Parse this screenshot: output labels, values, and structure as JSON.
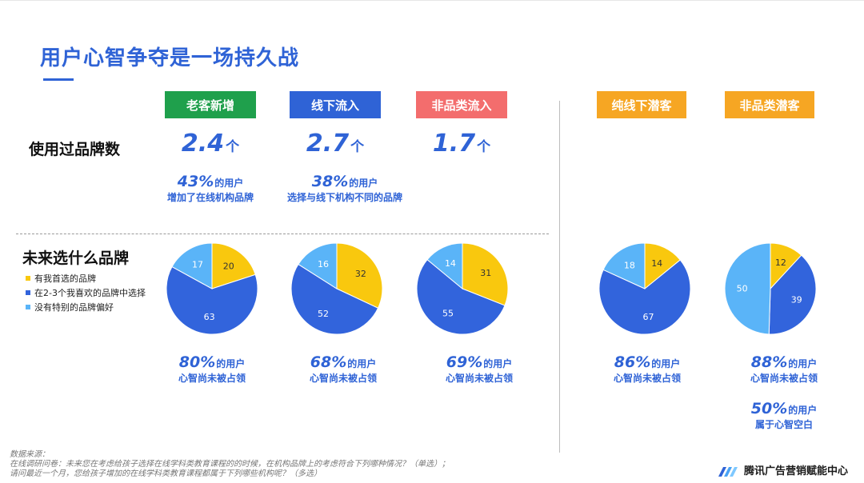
{
  "title": "用户心智争夺是一场持久战",
  "segments": [
    {
      "label": "老客新增",
      "color": "#1fa04c"
    },
    {
      "label": "线下流入",
      "color": "#2f63d6"
    },
    {
      "label": "非品类流入",
      "color": "#f36d6d"
    },
    {
      "label": "纯线下潜客",
      "color": "#f6a623"
    },
    {
      "label": "非品类潜客",
      "color": "#f6a623"
    }
  ],
  "row1_label": "使用过品牌数",
  "row2_label": "未来选什么品牌",
  "brand_counts": [
    {
      "value": "2.4",
      "unit": "个",
      "pct": "43%",
      "pct_suffix": "的用户",
      "desc": "增加了在线机构品牌"
    },
    {
      "value": "2.7",
      "unit": "个",
      "pct": "38%",
      "pct_suffix": "的用户",
      "desc": "选择与线下机构不同的品牌"
    },
    {
      "value": "1.7",
      "unit": "个"
    }
  ],
  "legend": [
    {
      "label": "有我首选的品牌",
      "color": "#f9c80e"
    },
    {
      "label": "在2-3个我喜欢的品牌中选择",
      "color": "#3264dc"
    },
    {
      "label": "没有特别的品牌偏好",
      "color": "#5ab4f8"
    }
  ],
  "chart_data": [
    {
      "type": "pie",
      "segment": "老客新增",
      "labels": [
        "有我首选的品牌",
        "在2-3个我喜欢的品牌中选择",
        "没有特别的品牌偏好"
      ],
      "values": [
        20,
        63,
        17
      ]
    },
    {
      "type": "pie",
      "segment": "线下流入",
      "labels": [
        "有我首选的品牌",
        "在2-3个我喜欢的品牌中选择",
        "没有特别的品牌偏好"
      ],
      "values": [
        32,
        52,
        16
      ]
    },
    {
      "type": "pie",
      "segment": "非品类流入",
      "labels": [
        "有我首选的品牌",
        "在2-3个我喜欢的品牌中选择",
        "没有特别的品牌偏好"
      ],
      "values": [
        31,
        55,
        14
      ]
    },
    {
      "type": "pie",
      "segment": "纯线下潜客",
      "labels": [
        "有我首选的品牌",
        "在2-3个我喜欢的品牌中选择",
        "没有特别的品牌偏好"
      ],
      "values": [
        14,
        67,
        18
      ]
    },
    {
      "type": "pie",
      "segment": "非品类潜客",
      "labels": [
        "有我首选的品牌",
        "在2-3个我喜欢的品牌中选择",
        "没有特别的品牌偏好"
      ],
      "values": [
        12,
        39,
        50
      ]
    }
  ],
  "mind_stats": [
    {
      "pct": "80%",
      "suffix": "的用户",
      "desc": "心智尚未被占领"
    },
    {
      "pct": "68%",
      "suffix": "的用户",
      "desc": "心智尚未被占领"
    },
    {
      "pct": "69%",
      "suffix": "的用户",
      "desc": "心智尚未被占领"
    },
    {
      "pct": "86%",
      "suffix": "的用户",
      "desc": "心智尚未被占领"
    },
    {
      "pct": "88%",
      "suffix": "的用户",
      "desc": "心智尚未被占领"
    }
  ],
  "extra_stat": {
    "pct": "50%",
    "suffix": "的用户",
    "desc": "属于心智空白"
  },
  "footer": {
    "line1": "数据来源：",
    "line2": "在线调研问卷：未来您在考虑给孩子选择在线学科类教育课程的的时候，在机构品牌上的考虑符合下列哪种情况？（单选）；",
    "line3": "请问最近一个月，您给孩子增加的在线学科类教育课程都属于下列哪些机构呢？（多选）"
  },
  "brand_name": "腾讯广告营销赋能中心"
}
